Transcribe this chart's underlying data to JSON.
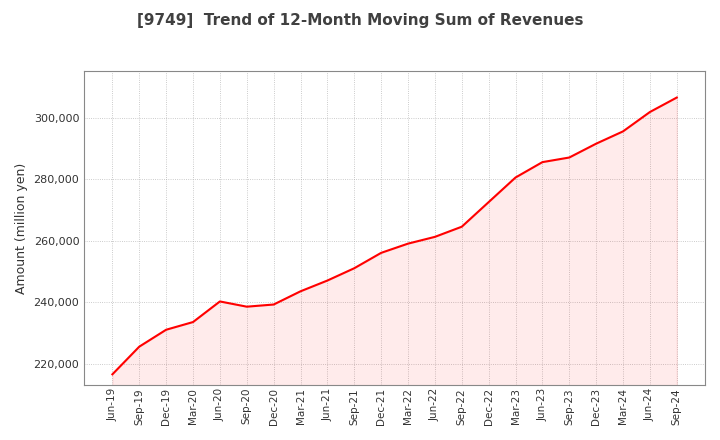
{
  "title": "[9749]  Trend of 12-Month Moving Sum of Revenues",
  "ylabel": "Amount (million yen)",
  "line_color": "#FF0000",
  "line_width": 1.5,
  "background_color": "#FFFFFF",
  "plot_bg_color": "#FFFFFF",
  "grid_color": "#AAAAAA",
  "title_color": "#404040",
  "ylim": [
    213000,
    315000
  ],
  "yticks": [
    220000,
    240000,
    260000,
    280000,
    300000
  ],
  "x_labels": [
    "Jun-19",
    "Sep-19",
    "Dec-19",
    "Mar-20",
    "Jun-20",
    "Sep-20",
    "Dec-20",
    "Mar-21",
    "Jun-21",
    "Sep-21",
    "Dec-21",
    "Mar-22",
    "Jun-22",
    "Sep-22",
    "Dec-22",
    "Mar-23",
    "Jun-23",
    "Sep-23",
    "Dec-23",
    "Mar-24",
    "Jun-24",
    "Sep-24"
  ],
  "values": [
    216500,
    225500,
    231000,
    233500,
    240200,
    238500,
    239200,
    243500,
    247000,
    251000,
    256000,
    259000,
    261200,
    264500,
    272500,
    280500,
    285500,
    287000,
    291500,
    295500,
    301800,
    306500
  ]
}
